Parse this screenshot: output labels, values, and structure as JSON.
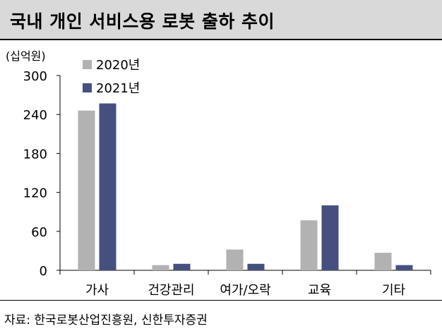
{
  "header": {
    "title": "국내 개인 서비스용 로봇 출하 추이"
  },
  "footer": {
    "source": "자료: 한국로봇산업진흥원, 신한투자증권"
  },
  "chart_data": {
    "type": "bar",
    "title": "국내 개인 서비스용 로봇 출하 추이",
    "unit_label": "(십억원)",
    "categories": [
      "가사",
      "건강관리",
      "여가/오락",
      "교육",
      "기타"
    ],
    "series": [
      {
        "name": "2020년",
        "color": "#b2b2b2",
        "values": [
          246,
          8,
          32,
          77,
          27
        ]
      },
      {
        "name": "2021년",
        "color": "#46507f",
        "values": [
          257,
          10,
          10,
          100,
          8
        ]
      }
    ],
    "ylim": [
      0,
      300
    ],
    "yticks": [
      0,
      60,
      120,
      180,
      240,
      300
    ],
    "grid": false,
    "legend": "top-left"
  }
}
